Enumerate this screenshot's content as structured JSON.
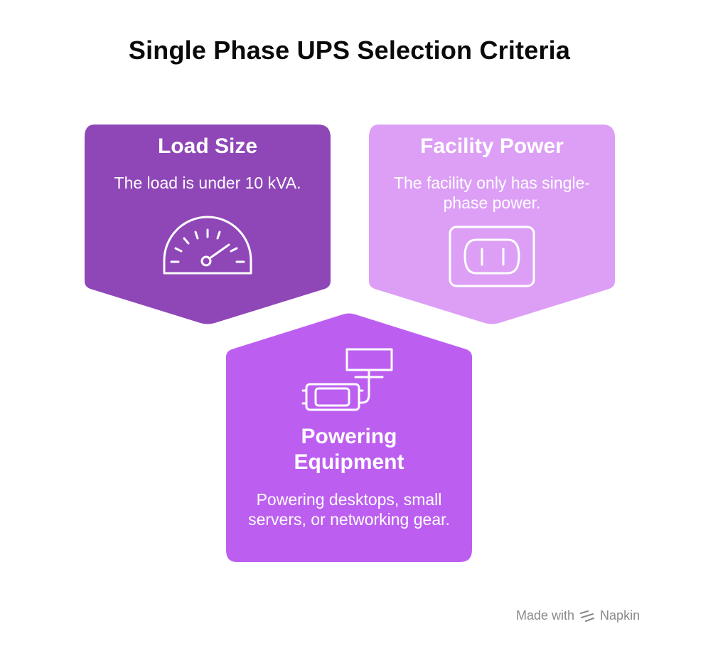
{
  "title": "Single Phase UPS Selection Criteria",
  "cards": [
    {
      "title": "Load Size",
      "text": "The load is under 10 kVA.",
      "icon": "speedometer-icon",
      "color": "#8f47b8"
    },
    {
      "title": "Facility Power",
      "text": "The facility only has single-phase power.",
      "icon": "power-outlet-icon",
      "color": "#dc9ff5"
    },
    {
      "title": "Powering Equipment",
      "text": "Powering desktops, small servers, or networking gear.",
      "icon": "ups-monitor-icon",
      "color": "#bc5ff0"
    }
  ],
  "footer": {
    "prefix": "Made with",
    "brand": "Napkin",
    "icon": "napkin-logo-icon"
  }
}
